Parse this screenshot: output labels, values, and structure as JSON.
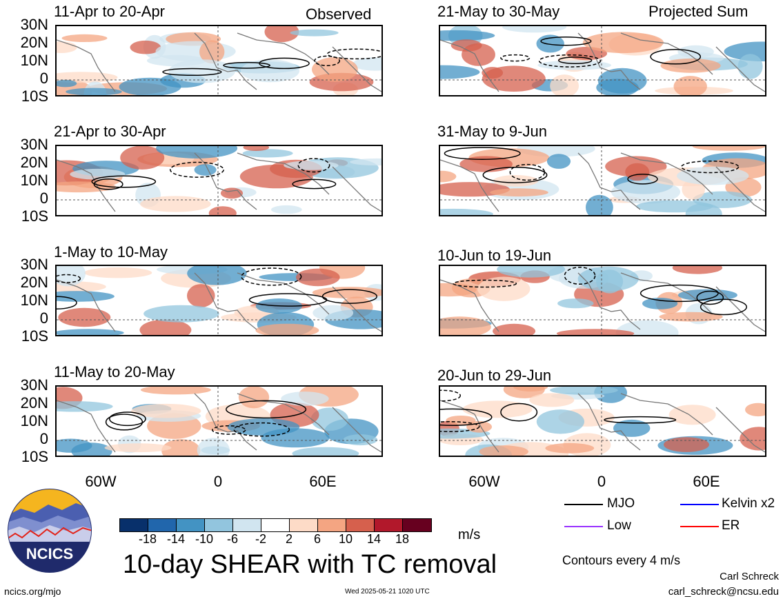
{
  "panels": [
    {
      "title": "11-Apr to 20-Apr",
      "tag": "Observed"
    },
    {
      "title": "21-Apr to 30-Apr",
      "tag": ""
    },
    {
      "title": "1-May to 10-May",
      "tag": ""
    },
    {
      "title": "11-May to 20-May",
      "tag": ""
    },
    {
      "title": "21-May to 30-May",
      "tag": "Projected Sum"
    },
    {
      "title": "31-May to 9-Jun",
      "tag": ""
    },
    {
      "title": "10-Jun to 19-Jun",
      "tag": ""
    },
    {
      "title": "20-Jun to 29-Jun",
      "tag": ""
    }
  ],
  "lat_labels": [
    "30N",
    "20N",
    "10N",
    "0",
    "10S"
  ],
  "lon_labels": [
    "60W",
    "0",
    "60E"
  ],
  "colorbar": {
    "ticks": [
      "-18",
      "-14",
      "-10",
      "-6",
      "-2",
      "2",
      "6",
      "10",
      "14",
      "18"
    ],
    "colors": [
      "#08306b",
      "#2166ac",
      "#4393c3",
      "#92c5de",
      "#d1e5f0",
      "#ffffff",
      "#fddbc7",
      "#f4a582",
      "#d6604d",
      "#b2182b",
      "#67001f"
    ],
    "units": "m/s"
  },
  "legend": [
    {
      "name": "MJO",
      "color": "#000000"
    },
    {
      "name": "Kelvin x2",
      "color": "#0000ff"
    },
    {
      "name": "Low",
      "color": "#9933ff"
    },
    {
      "name": "ER",
      "color": "#ff0000"
    }
  ],
  "contour_note": "Contours every 4 m/s",
  "main_title": "10-day SHEAR with TC removal",
  "logo_text": "NCICS",
  "website": "ncics.org/mjo",
  "timestamp": "Wed 2025-05-21 1020 UTC",
  "author": "Carl Schreck",
  "email": "carl_schreck@ncsu.edu"
}
